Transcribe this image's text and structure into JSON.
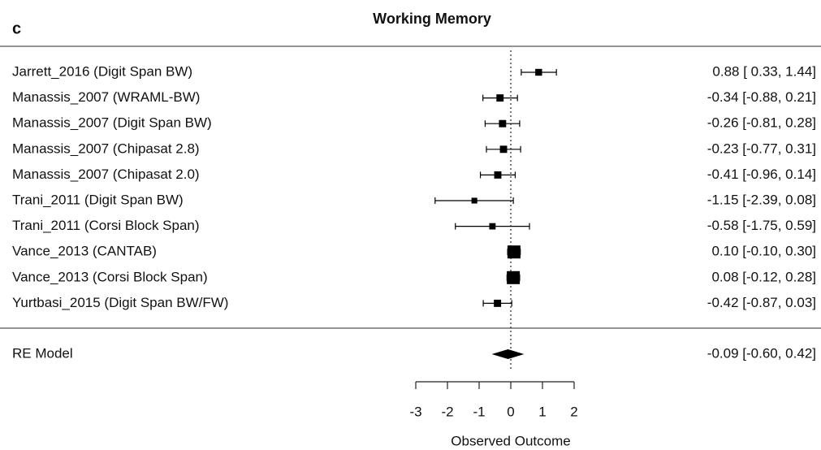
{
  "chart_data": {
    "type": "forest",
    "title": "Working Memory",
    "panel_label": "c",
    "x_label": "Observed Outcome",
    "studies": [
      "Jarrett_2016 (Digit Span BW)",
      "Manassis_2007 (WRAML-BW)",
      "Manassis_2007 (Digit Span BW)",
      "Manassis_2007 (Chipasat 2.8)",
      "Manassis_2007 (Chipasat 2.0)",
      "Trani_2011 (Digit Span BW)",
      "Trani_2011 (Corsi Block Span)",
      "Vance_2013 (CANTAB)",
      "Vance_2013 (Corsi Block Span)",
      "Yurtbasi_2015 (Digit Span BW/FW)"
    ],
    "estimates": [
      0.88,
      -0.34,
      -0.26,
      -0.23,
      -0.41,
      -1.15,
      -0.58,
      0.1,
      0.08,
      -0.42
    ],
    "lower": [
      0.33,
      -0.88,
      -0.81,
      -0.77,
      -0.96,
      -2.39,
      -1.75,
      -0.1,
      -0.12,
      -0.87
    ],
    "upper": [
      1.44,
      0.21,
      0.28,
      0.31,
      0.14,
      0.08,
      0.59,
      0.3,
      0.28,
      0.03
    ],
    "value_labels": [
      "0.88 [ 0.33, 1.44]",
      "-0.34 [-0.88, 0.21]",
      "-0.26 [-0.81, 0.28]",
      "-0.23 [-0.77, 0.31]",
      "-0.41 [-0.96, 0.14]",
      "-1.15 [-2.39, 0.08]",
      "-0.58 [-1.75, 0.59]",
      "0.10 [-0.10, 0.30]",
      "0.08 [-0.12, 0.28]",
      "-0.42 [-0.87, 0.03]"
    ],
    "weights": [
      4,
      5,
      5,
      5,
      5,
      2,
      3,
      30,
      30,
      5
    ],
    "summary": {
      "label": "RE Model",
      "estimate": -0.09,
      "lower": -0.6,
      "upper": 0.42,
      "value_label": "-0.09 [-0.60, 0.42]"
    },
    "xlim": [
      -3,
      2
    ],
    "xticks": [
      -3,
      -2,
      -1,
      0,
      1,
      2
    ],
    "reference_line": 0,
    "color": "#000000"
  }
}
